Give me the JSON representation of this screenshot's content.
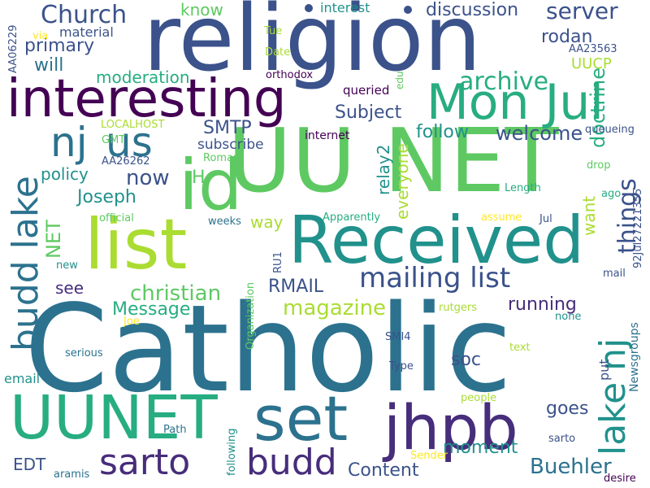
{
  "palette": {
    "dark_purple": "#440154",
    "indigo": "#472d7b",
    "slate_blue": "#3b528b",
    "steel_blue": "#2c728e",
    "teal": "#21918c",
    "green_teal": "#27ad81",
    "green": "#5ec962",
    "lime": "#aadc32",
    "yellow": "#fde725"
  },
  "words": [
    {
      "text": "Catholic",
      "color": "#2c728e"
    },
    {
      "text": "religion",
      "color": "#3b528b"
    },
    {
      "text": "UU NET",
      "color": "#5ec962"
    },
    {
      "text": "Received",
      "color": "#21918c"
    },
    {
      "text": "interesting",
      "color": "#440154"
    },
    {
      "text": "list",
      "color": "#aadc32"
    },
    {
      "text": "id",
      "color": "#5ec962"
    },
    {
      "text": "Mon Jul",
      "color": "#27ad81"
    },
    {
      "text": "UUNET",
      "color": "#27ad81"
    },
    {
      "text": "set",
      "color": "#2c728e"
    },
    {
      "text": "jhpb",
      "color": "#472d7b"
    },
    {
      "text": "budd lake",
      "color": "#2c728e"
    },
    {
      "text": "lake nj",
      "color": "#21918c"
    },
    {
      "text": "sarto",
      "color": "#472d7b"
    },
    {
      "text": "budd",
      "color": "#472d7b"
    },
    {
      "text": "nj",
      "color": "#2c728e"
    },
    {
      "text": "us",
      "color": "#2c728e"
    },
    {
      "text": "mailing list",
      "color": "#3b528b"
    },
    {
      "text": "Church",
      "color": "#3b528b"
    },
    {
      "text": "server",
      "color": "#3b528b"
    },
    {
      "text": "archive",
      "color": "#27ad81"
    },
    {
      "text": "things",
      "color": "#3b528b"
    },
    {
      "text": "magazine",
      "color": "#aadc32"
    },
    {
      "text": "Buehler",
      "color": "#2c728e"
    },
    {
      "text": "discussion",
      "color": "#3b528b"
    },
    {
      "text": "christian",
      "color": "#5ec962"
    },
    {
      "text": "doctrine",
      "color": "#27ad81"
    },
    {
      "text": "rodan",
      "color": "#3b528b"
    },
    {
      "text": "welcome",
      "color": "#3b528b"
    },
    {
      "text": "follow",
      "color": "#21918c"
    },
    {
      "text": "Subject",
      "color": "#3b528b"
    },
    {
      "text": "Joseph",
      "color": "#21918c"
    },
    {
      "text": "now",
      "color": "#3b528b"
    },
    {
      "text": "primary",
      "color": "#3b528b"
    },
    {
      "text": "moderation",
      "color": "#27ad81"
    },
    {
      "text": "Message",
      "color": "#27ad81"
    },
    {
      "text": "RMAIL",
      "color": "#3b528b"
    },
    {
      "text": "SMTP",
      "color": "#3b528b"
    },
    {
      "text": "Content",
      "color": "#3b528b"
    },
    {
      "text": "moment",
      "color": "#21918c"
    },
    {
      "text": "running",
      "color": "#472d7b"
    },
    {
      "text": "soc",
      "color": "#3b528b"
    },
    {
      "text": "goes",
      "color": "#3b528b"
    },
    {
      "text": "policy",
      "color": "#21918c"
    },
    {
      "text": "NET",
      "color": "#5ec962"
    },
    {
      "text": "H",
      "color": "#5ec962"
    },
    {
      "text": "relay2",
      "color": "#21918c"
    },
    {
      "text": "everyone",
      "color": "#aadc32"
    },
    {
      "text": "want",
      "color": "#aadc32"
    },
    {
      "text": "way",
      "color": "#aadc32"
    },
    {
      "text": "see",
      "color": "#472d7b"
    },
    {
      "text": "will",
      "color": "#2c728e"
    },
    {
      "text": "know",
      "color": "#5ec962"
    },
    {
      "text": "UUCP",
      "color": "#aadc32"
    },
    {
      "text": "put",
      "color": "#3b528b"
    },
    {
      "text": "EDT",
      "color": "#3b528b"
    },
    {
      "text": "subscribe",
      "color": "#3b528b"
    },
    {
      "text": "material",
      "color": "#3b528b"
    },
    {
      "text": "interest",
      "color": "#21918c"
    },
    {
      "text": "email",
      "color": "#21918c"
    },
    {
      "text": "Tue",
      "color": "#aadc32"
    },
    {
      "text": "Date",
      "color": "#aadc32"
    },
    {
      "text": "orthodox",
      "color": "#440154"
    },
    {
      "text": "queried",
      "color": "#440154"
    },
    {
      "text": "internet",
      "color": "#440154"
    },
    {
      "text": "LOCALHOST",
      "color": "#aadc32"
    },
    {
      "text": "GMT",
      "color": "#5ec962"
    },
    {
      "text": "AA26262",
      "color": "#3b528b"
    },
    {
      "text": "Roman",
      "color": "#5ec962"
    },
    {
      "text": "official",
      "color": "#5ec962"
    },
    {
      "text": "weeks",
      "color": "#2c728e"
    },
    {
      "text": "Apparently",
      "color": "#27ad81"
    },
    {
      "text": "Length",
      "color": "#27ad81"
    },
    {
      "text": "drop",
      "color": "#5ec962"
    },
    {
      "text": "assume",
      "color": "#fde725"
    },
    {
      "text": "ago",
      "color": "#27ad81"
    },
    {
      "text": "Jul",
      "color": "#3b528b"
    },
    {
      "text": "queueing",
      "color": "#3b528b"
    },
    {
      "text": "AA23563",
      "color": "#3b528b"
    },
    {
      "text": "via",
      "color": "#fde725"
    },
    {
      "text": "new",
      "color": "#21918c"
    },
    {
      "text": "Joe",
      "color": "#fde725"
    },
    {
      "text": "serious",
      "color": "#2c728e"
    },
    {
      "text": "Type",
      "color": "#3b528b"
    },
    {
      "text": "SMI4",
      "color": "#3b528b"
    },
    {
      "text": "rutgers",
      "color": "#aadc32"
    },
    {
      "text": "none",
      "color": "#21918c"
    },
    {
      "text": "text",
      "color": "#aadc32"
    },
    {
      "text": "people",
      "color": "#aadc32"
    },
    {
      "text": "Path",
      "color": "#2c728e"
    },
    {
      "text": "Sender",
      "color": "#fde725"
    },
    {
      "text": "sarto",
      "color": "#3b528b"
    },
    {
      "text": "aramis",
      "color": "#2c728e"
    },
    {
      "text": "desire",
      "color": "#440154"
    },
    {
      "text": "mail",
      "color": "#3b528b"
    },
    {
      "text": "AA06229",
      "color": "#3b528b"
    },
    {
      "text": "edu",
      "color": "#5ec962"
    },
    {
      "text": "92Jul27221355",
      "color": "#3b528b"
    },
    {
      "text": "RU1",
      "color": "#3b528b"
    },
    {
      "text": "Organization",
      "color": "#5ec962"
    },
    {
      "text": "following",
      "color": "#21918c"
    },
    {
      "text": "Newsgroups",
      "color": "#2c728e"
    }
  ]
}
